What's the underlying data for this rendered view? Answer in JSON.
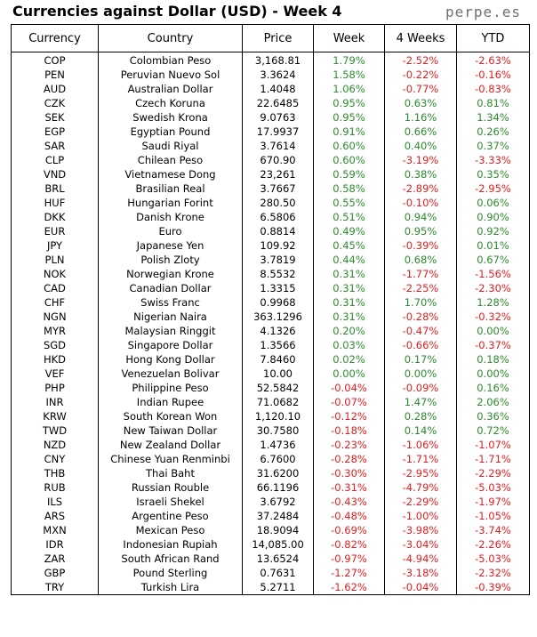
{
  "title": "Currencies against Dollar (USD) - Week 4",
  "brand": "perpe.es",
  "colors": {
    "positive": "#2e8b2e",
    "negative": "#e02020"
  },
  "headers": [
    "Currency",
    "Country",
    "Price",
    "Week",
    "4 Weeks",
    "YTD"
  ],
  "rows": [
    [
      "COP",
      "Colombian Peso",
      "3,168.81",
      "1.79%",
      "-2.52%",
      "-2.63%"
    ],
    [
      "PEN",
      "Peruvian Nuevo Sol",
      "3.3624",
      "1.58%",
      "-0.22%",
      "-0.16%"
    ],
    [
      "AUD",
      "Australian Dollar",
      "1.4048",
      "1.06%",
      "-0.77%",
      "-0.83%"
    ],
    [
      "CZK",
      "Czech Koruna",
      "22.6485",
      "0.95%",
      "0.63%",
      "0.81%"
    ],
    [
      "SEK",
      "Swedish Krona",
      "9.0763",
      "0.95%",
      "1.16%",
      "1.34%"
    ],
    [
      "EGP",
      "Egyptian Pound",
      "17.9937",
      "0.91%",
      "0.66%",
      "0.26%"
    ],
    [
      "SAR",
      "Saudi Riyal",
      "3.7614",
      "0.60%",
      "0.40%",
      "0.37%"
    ],
    [
      "CLP",
      "Chilean Peso",
      "670.90",
      "0.60%",
      "-3.19%",
      "-3.33%"
    ],
    [
      "VND",
      "Vietnamese Dong",
      "23,261",
      "0.59%",
      "0.38%",
      "0.35%"
    ],
    [
      "BRL",
      "Brasilian Real",
      "3.7667",
      "0.58%",
      "-2.89%",
      "-2.95%"
    ],
    [
      "HUF",
      "Hungarian Forint",
      "280.50",
      "0.55%",
      "-0.10%",
      "0.06%"
    ],
    [
      "DKK",
      "Danish Krone",
      "6.5806",
      "0.51%",
      "0.94%",
      "0.90%"
    ],
    [
      "EUR",
      "Euro",
      "0.8814",
      "0.49%",
      "0.95%",
      "0.92%"
    ],
    [
      "JPY",
      "Japanese Yen",
      "109.92",
      "0.45%",
      "-0.39%",
      "0.01%"
    ],
    [
      "PLN",
      "Polish Zloty",
      "3.7819",
      "0.44%",
      "0.68%",
      "0.67%"
    ],
    [
      "NOK",
      "Norwegian Krone",
      "8.5532",
      "0.31%",
      "-1.77%",
      "-1.56%"
    ],
    [
      "CAD",
      "Canadian Dollar",
      "1.3315",
      "0.31%",
      "-2.25%",
      "-2.30%"
    ],
    [
      "CHF",
      "Swiss Franc",
      "0.9968",
      "0.31%",
      "1.70%",
      "1.28%"
    ],
    [
      "NGN",
      "Nigerian Naira",
      "363.1296",
      "0.31%",
      "-0.28%",
      "-0.32%"
    ],
    [
      "MYR",
      "Malaysian Ringgit",
      "4.1326",
      "0.20%",
      "-0.47%",
      "0.00%"
    ],
    [
      "SGD",
      "Singapore Dollar",
      "1.3566",
      "0.03%",
      "-0.66%",
      "-0.37%"
    ],
    [
      "HKD",
      "Hong Kong Dollar",
      "7.8460",
      "0.02%",
      "0.17%",
      "0.18%"
    ],
    [
      "VEF",
      "Venezuelan Bolivar",
      "10.00",
      "0.00%",
      "0.00%",
      "0.00%"
    ],
    [
      "PHP",
      "Philippine Peso",
      "52.5842",
      "-0.04%",
      "-0.09%",
      "0.16%"
    ],
    [
      "INR",
      "Indian Rupee",
      "71.0682",
      "-0.07%",
      "1.47%",
      "2.06%"
    ],
    [
      "KRW",
      "South Korean Won",
      "1,120.10",
      "-0.12%",
      "0.28%",
      "0.36%"
    ],
    [
      "TWD",
      "New Taiwan Dollar",
      "30.7580",
      "-0.18%",
      "0.14%",
      "0.72%"
    ],
    [
      "NZD",
      "New Zealand Dollar",
      "1.4736",
      "-0.23%",
      "-1.06%",
      "-1.07%"
    ],
    [
      "CNY",
      "Chinese Yuan Renminbi",
      "6.7600",
      "-0.28%",
      "-1.71%",
      "-1.71%"
    ],
    [
      "THB",
      "Thai Baht",
      "31.6200",
      "-0.30%",
      "-2.95%",
      "-2.29%"
    ],
    [
      "RUB",
      "Russian Rouble",
      "66.1196",
      "-0.31%",
      "-4.79%",
      "-5.03%"
    ],
    [
      "ILS",
      "Israeli Shekel",
      "3.6792",
      "-0.43%",
      "-2.29%",
      "-1.97%"
    ],
    [
      "ARS",
      "Argentine Peso",
      "37.2484",
      "-0.48%",
      "-1.00%",
      "-1.05%"
    ],
    [
      "MXN",
      "Mexican Peso",
      "18.9094",
      "-0.69%",
      "-3.98%",
      "-3.74%"
    ],
    [
      "IDR",
      "Indonesian Rupiah",
      "14,085.00",
      "-0.82%",
      "-3.04%",
      "-2.26%"
    ],
    [
      "ZAR",
      "South African Rand",
      "13.6524",
      "-0.97%",
      "-4.94%",
      "-5.03%"
    ],
    [
      "GBP",
      "Pound Sterling",
      "0.7631",
      "-1.27%",
      "-3.18%",
      "-2.32%"
    ],
    [
      "TRY",
      "Turkish Lira",
      "5.2711",
      "-1.62%",
      "-0.04%",
      "-0.39%"
    ]
  ]
}
